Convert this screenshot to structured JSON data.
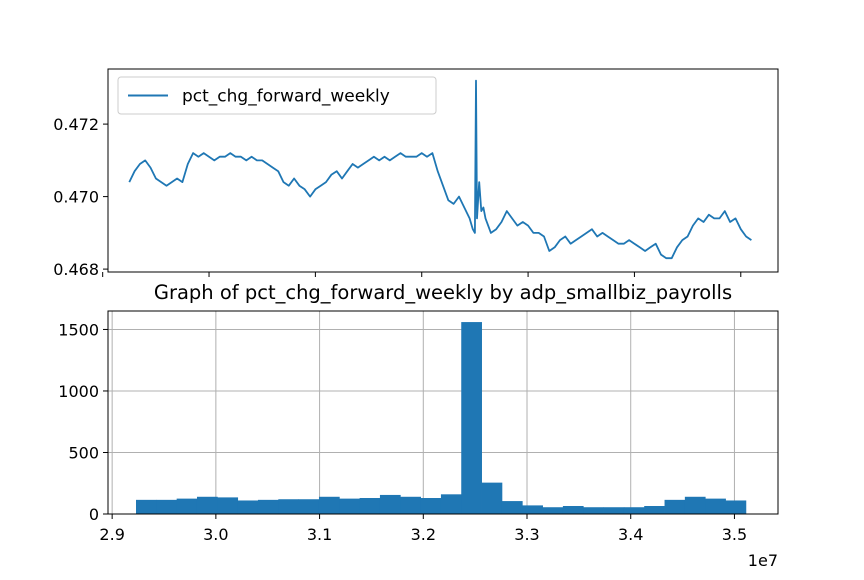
{
  "chart_data": [
    {
      "type": "line",
      "title": "",
      "xlabel": "",
      "ylabel": "",
      "xlim": [
        29050000,
        35350000
      ],
      "ylim": [
        0.46792,
        0.47352
      ],
      "y_ticks": [
        0.468,
        0.47,
        0.472
      ],
      "y_tick_labels": [
        "0.468",
        "0.470",
        "0.472"
      ],
      "x_ticks": [
        29000000,
        30000000,
        31000000,
        32000000,
        33000000,
        34000000,
        35000000
      ],
      "grid": false,
      "legend": "top-left",
      "series": [
        {
          "name": "pct_chg_forward_weekly",
          "color": "#1f77b4",
          "points": [
            [
              29250000,
              0.4704
            ],
            [
              29300000,
              0.4707
            ],
            [
              29350000,
              0.4709
            ],
            [
              29400000,
              0.471
            ],
            [
              29450000,
              0.4708
            ],
            [
              29500000,
              0.4705
            ],
            [
              29550000,
              0.4704
            ],
            [
              29600000,
              0.4703
            ],
            [
              29650000,
              0.4704
            ],
            [
              29700000,
              0.4705
            ],
            [
              29750000,
              0.4704
            ],
            [
              29800000,
              0.4709
            ],
            [
              29850000,
              0.4712
            ],
            [
              29900000,
              0.4711
            ],
            [
              29950000,
              0.4712
            ],
            [
              30000000,
              0.4711
            ],
            [
              30050000,
              0.471
            ],
            [
              30100000,
              0.4711
            ],
            [
              30150000,
              0.4711
            ],
            [
              30200000,
              0.4712
            ],
            [
              30250000,
              0.4711
            ],
            [
              30300000,
              0.4711
            ],
            [
              30350000,
              0.471
            ],
            [
              30400000,
              0.4711
            ],
            [
              30450000,
              0.471
            ],
            [
              30500000,
              0.471
            ],
            [
              30550000,
              0.4709
            ],
            [
              30600000,
              0.4708
            ],
            [
              30650000,
              0.4707
            ],
            [
              30700000,
              0.4704
            ],
            [
              30750000,
              0.4703
            ],
            [
              30800000,
              0.4705
            ],
            [
              30850000,
              0.4703
            ],
            [
              30900000,
              0.4702
            ],
            [
              30950000,
              0.47
            ],
            [
              31000000,
              0.4702
            ],
            [
              31050000,
              0.4703
            ],
            [
              31100000,
              0.4704
            ],
            [
              31150000,
              0.4706
            ],
            [
              31200000,
              0.4707
            ],
            [
              31250000,
              0.4705
            ],
            [
              31300000,
              0.4707
            ],
            [
              31350000,
              0.4709
            ],
            [
              31400000,
              0.4708
            ],
            [
              31450000,
              0.4709
            ],
            [
              31500000,
              0.471
            ],
            [
              31550000,
              0.4711
            ],
            [
              31600000,
              0.471
            ],
            [
              31650000,
              0.4711
            ],
            [
              31700000,
              0.471
            ],
            [
              31750000,
              0.4711
            ],
            [
              31800000,
              0.4712
            ],
            [
              31850000,
              0.4711
            ],
            [
              31900000,
              0.4711
            ],
            [
              31950000,
              0.4711
            ],
            [
              32000000,
              0.4712
            ],
            [
              32050000,
              0.4711
            ],
            [
              32100000,
              0.4712
            ],
            [
              32150000,
              0.4707
            ],
            [
              32200000,
              0.4703
            ],
            [
              32250000,
              0.4699
            ],
            [
              32300000,
              0.4698
            ],
            [
              32350000,
              0.47
            ],
            [
              32400000,
              0.4697
            ],
            [
              32450000,
              0.4694
            ],
            [
              32480000,
              0.4691
            ],
            [
              32500000,
              0.469
            ],
            [
              32510000,
              0.4732
            ],
            [
              32520000,
              0.4694
            ],
            [
              32540000,
              0.4704
            ],
            [
              32560000,
              0.4696
            ],
            [
              32580000,
              0.4697
            ],
            [
              32600000,
              0.4694
            ],
            [
              32650000,
              0.469
            ],
            [
              32700000,
              0.4691
            ],
            [
              32750000,
              0.4693
            ],
            [
              32800000,
              0.4696
            ],
            [
              32850000,
              0.4694
            ],
            [
              32900000,
              0.4692
            ],
            [
              32950000,
              0.4693
            ],
            [
              33000000,
              0.4692
            ],
            [
              33050000,
              0.469
            ],
            [
              33100000,
              0.469
            ],
            [
              33150000,
              0.4689
            ],
            [
              33200000,
              0.4685
            ],
            [
              33250000,
              0.4686
            ],
            [
              33300000,
              0.4688
            ],
            [
              33350000,
              0.4689
            ],
            [
              33400000,
              0.4687
            ],
            [
              33450000,
              0.4688
            ],
            [
              33500000,
              0.4689
            ],
            [
              33550000,
              0.469
            ],
            [
              33600000,
              0.4691
            ],
            [
              33650000,
              0.4689
            ],
            [
              33700000,
              0.469
            ],
            [
              33750000,
              0.4689
            ],
            [
              33800000,
              0.4688
            ],
            [
              33850000,
              0.4687
            ],
            [
              33900000,
              0.4687
            ],
            [
              33950000,
              0.4688
            ],
            [
              34000000,
              0.4687
            ],
            [
              34050000,
              0.4686
            ],
            [
              34100000,
              0.4685
            ],
            [
              34150000,
              0.4686
            ],
            [
              34200000,
              0.4687
            ],
            [
              34250000,
              0.4684
            ],
            [
              34300000,
              0.4683
            ],
            [
              34350000,
              0.4683
            ],
            [
              34400000,
              0.4686
            ],
            [
              34450000,
              0.4688
            ],
            [
              34500000,
              0.4689
            ],
            [
              34550000,
              0.4692
            ],
            [
              34600000,
              0.4694
            ],
            [
              34650000,
              0.4693
            ],
            [
              34700000,
              0.4695
            ],
            [
              34750000,
              0.4694
            ],
            [
              34800000,
              0.4694
            ],
            [
              34850000,
              0.4696
            ],
            [
              34900000,
              0.4693
            ],
            [
              34950000,
              0.4694
            ],
            [
              35000000,
              0.4691
            ],
            [
              35050000,
              0.4689
            ],
            [
              35100000,
              0.4688
            ]
          ]
        }
      ]
    },
    {
      "type": "bar",
      "title": "Graph of pct_chg_forward_weekly by adp_smallbiz_payrolls",
      "xlabel": "",
      "ylabel": "",
      "xlim": [
        28960000,
        35420000
      ],
      "ylim": [
        0,
        1650
      ],
      "x_ticks": [
        29000000,
        30000000,
        31000000,
        32000000,
        33000000,
        34000000,
        35000000
      ],
      "x_tick_labels": [
        "2.9",
        "3.0",
        "3.1",
        "3.2",
        "3.3",
        "3.4",
        "3.5"
      ],
      "x_offset_label": "1e7",
      "y_ticks": [
        0,
        500,
        1000,
        1500
      ],
      "y_tick_labels": [
        "0",
        "500",
        "1000",
        "1500"
      ],
      "grid": true,
      "bar_color": "#1f77b4",
      "bin_start": 29230000,
      "bin_width": 196000,
      "values": [
        115,
        115,
        125,
        140,
        135,
        110,
        115,
        120,
        120,
        140,
        125,
        130,
        155,
        140,
        130,
        160,
        1560,
        255,
        105,
        70,
        55,
        65,
        55,
        55,
        55,
        65,
        115,
        140,
        125,
        110
      ]
    }
  ]
}
